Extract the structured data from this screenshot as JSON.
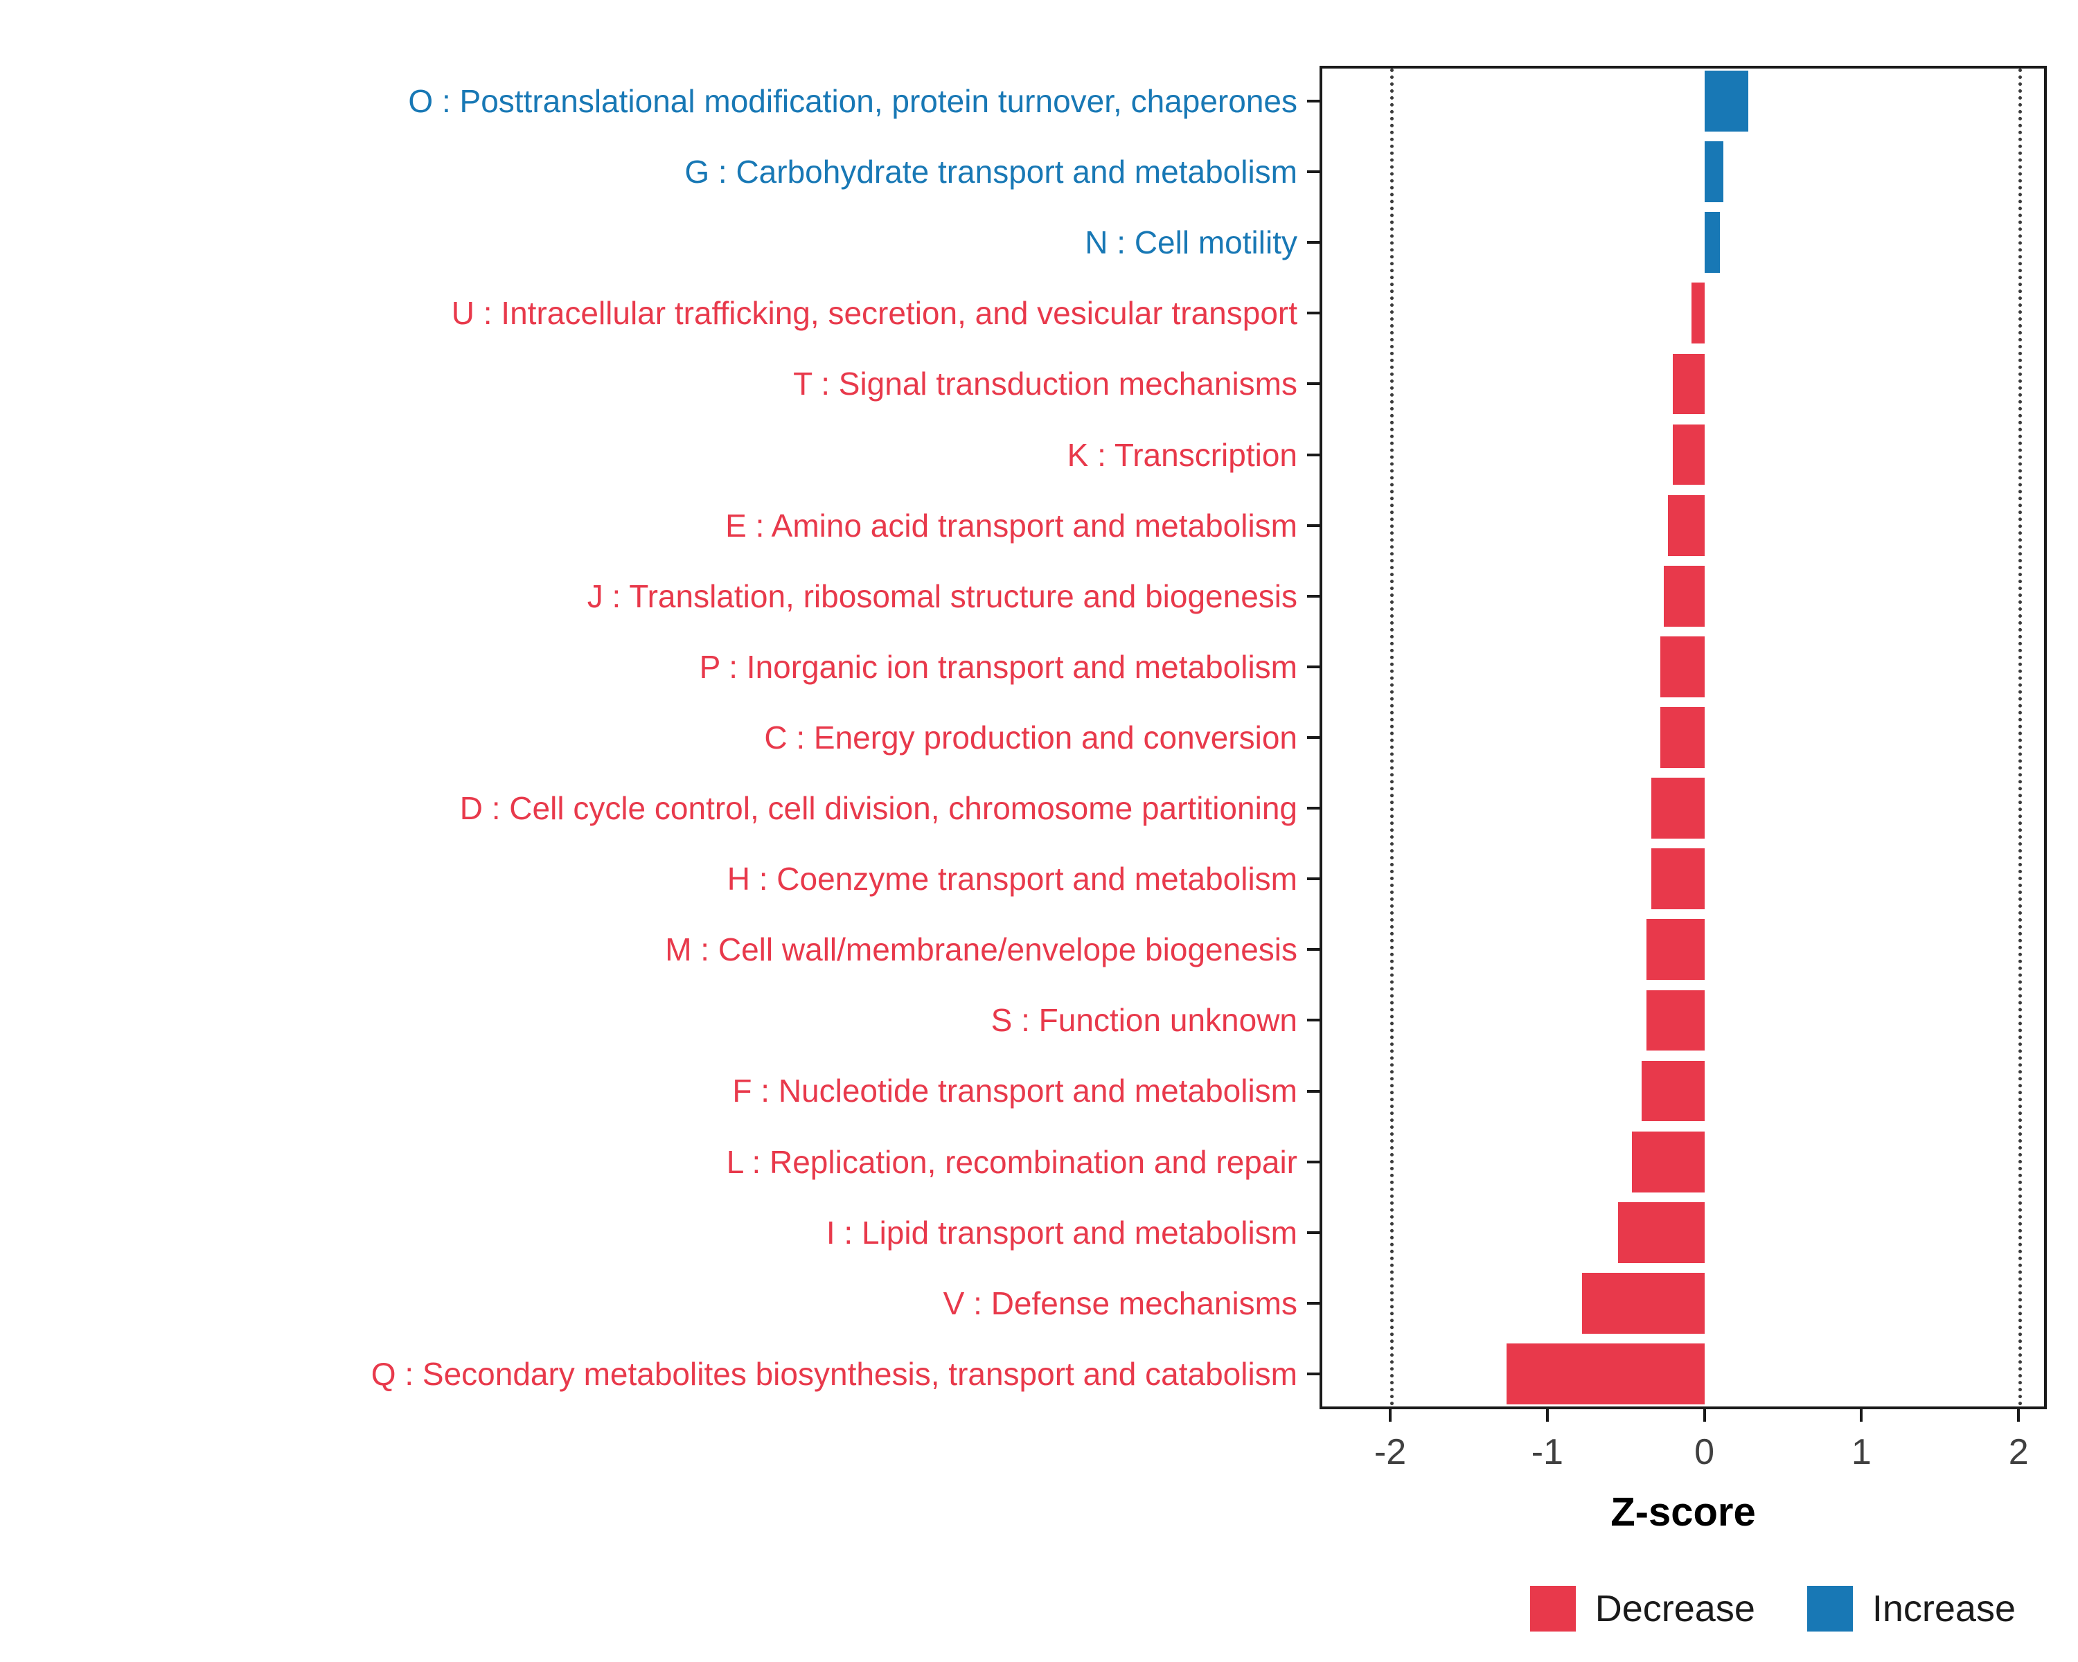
{
  "chart_data": {
    "type": "bar",
    "orientation": "horizontal",
    "title": "",
    "xlabel": "Z-score",
    "ylabel": "",
    "xlim": [
      -2.45,
      2.18
    ],
    "x_ticks": [
      "-2",
      "-1",
      "0",
      "1",
      "2"
    ],
    "x_tick_values": [
      -2,
      -1,
      0,
      1,
      2
    ],
    "threshold_lines": [
      -2,
      2
    ],
    "grid": "threshold-dotted-only",
    "legend_position": "bottom-right",
    "legend": [
      {
        "label": "Decrease",
        "color": "#E8394B"
      },
      {
        "label": "Increase",
        "color": "#1878B5"
      }
    ],
    "categories": [
      {
        "label": "O : Posttranslational modification, protein turnover, chaperones",
        "value": 0.28,
        "direction": "Increase"
      },
      {
        "label": "G : Carbohydrate transport and metabolism",
        "value": 0.12,
        "direction": "Increase"
      },
      {
        "label": "N : Cell motility",
        "value": 0.1,
        "direction": "Increase"
      },
      {
        "label": "U : Intracellular trafficking, secretion, and vesicular transport",
        "value": -0.08,
        "direction": "Decrease"
      },
      {
        "label": "T : Signal transduction mechanisms",
        "value": -0.2,
        "direction": "Decrease"
      },
      {
        "label": "K : Transcription",
        "value": -0.2,
        "direction": "Decrease"
      },
      {
        "label": "E : Amino acid transport and metabolism",
        "value": -0.23,
        "direction": "Decrease"
      },
      {
        "label": "J : Translation, ribosomal structure and biogenesis",
        "value": -0.26,
        "direction": "Decrease"
      },
      {
        "label": "P : Inorganic ion transport and metabolism",
        "value": -0.28,
        "direction": "Decrease"
      },
      {
        "label": "C : Energy production and conversion",
        "value": -0.28,
        "direction": "Decrease"
      },
      {
        "label": "D : Cell cycle control, cell division, chromosome partitioning",
        "value": -0.34,
        "direction": "Decrease"
      },
      {
        "label": "H : Coenzyme transport and metabolism",
        "value": -0.34,
        "direction": "Decrease"
      },
      {
        "label": "M : Cell wall/membrane/envelope biogenesis",
        "value": -0.37,
        "direction": "Decrease"
      },
      {
        "label": "S : Function unknown",
        "value": -0.37,
        "direction": "Decrease"
      },
      {
        "label": "F : Nucleotide transport and metabolism",
        "value": -0.4,
        "direction": "Decrease"
      },
      {
        "label": "L : Replication, recombination and repair",
        "value": -0.46,
        "direction": "Decrease"
      },
      {
        "label": "I : Lipid transport and metabolism",
        "value": -0.55,
        "direction": "Decrease"
      },
      {
        "label": "V : Defense mechanisms",
        "value": -0.78,
        "direction": "Decrease"
      },
      {
        "label": "Q : Secondary metabolites biosynthesis, transport and catabolism",
        "value": -1.26,
        "direction": "Decrease"
      }
    ]
  }
}
